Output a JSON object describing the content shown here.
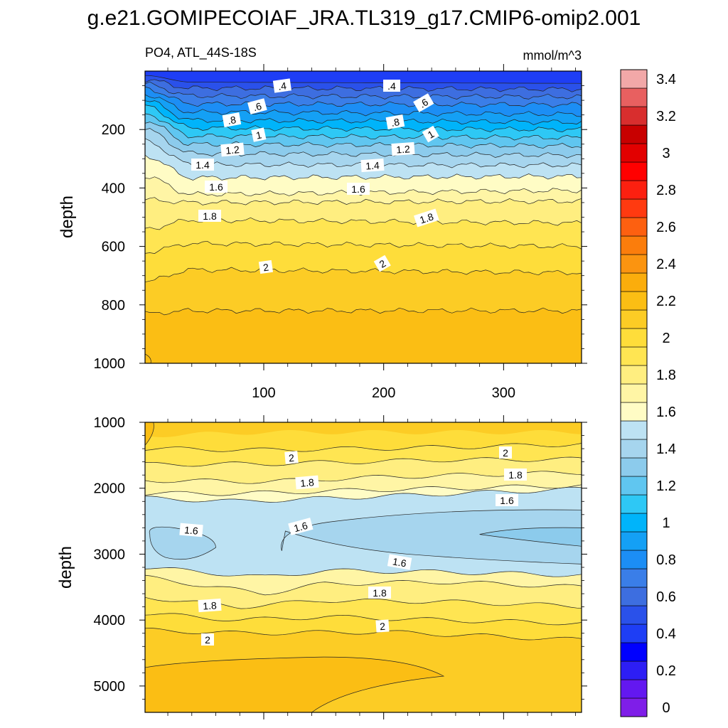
{
  "title": "g.e21.GOMIPECOIAF_JRA.TL319_g17.CMIP6-omip2.001",
  "chart_data": [
    {
      "type": "contour",
      "panel": "upper",
      "left_string": "PO4, ATL_44S-18S",
      "right_string": "mmol/m^3",
      "ylabel": "depth",
      "xlabel": "",
      "xlim": [
        1,
        365
      ],
      "ylim": [
        1000,
        0
      ],
      "x_ticks": [
        100,
        200,
        300
      ],
      "y_ticks": [
        200,
        400,
        600,
        800,
        1000
      ],
      "contour_levels": [
        {
          "value": 0.4,
          "depth_profile": [
            [
              1,
              15
            ],
            [
              40,
              38
            ],
            [
              365,
              42
            ]
          ]
        },
        {
          "value": 0.5,
          "depth_profile": [
            [
              1,
              30
            ],
            [
              40,
              58
            ],
            [
              365,
              62
            ]
          ]
        },
        {
          "value": 0.6,
          "depth_profile": [
            [
              1,
              45
            ],
            [
              40,
              85
            ],
            [
              365,
              88
            ]
          ]
        },
        {
          "value": 0.7,
          "depth_profile": [
            [
              1,
              60
            ],
            [
              40,
              112
            ],
            [
              365,
              115
            ]
          ]
        },
        {
          "value": 0.8,
          "depth_profile": [
            [
              1,
              80
            ],
            [
              40,
              140
            ],
            [
              365,
              148
            ]
          ]
        },
        {
          "value": 0.9,
          "depth_profile": [
            [
              1,
              100
            ],
            [
              40,
              168
            ],
            [
              365,
              175
            ]
          ]
        },
        {
          "value": 1.0,
          "depth_profile": [
            [
              1,
              120
            ],
            [
              40,
              195
            ],
            [
              365,
              200
            ]
          ]
        },
        {
          "value": 1.1,
          "depth_profile": [
            [
              1,
              145
            ],
            [
              40,
              222
            ],
            [
              365,
              228
            ]
          ]
        },
        {
          "value": 1.2,
          "depth_profile": [
            [
              1,
              170
            ],
            [
              40,
              250
            ],
            [
              365,
              256
            ]
          ]
        },
        {
          "value": 1.3,
          "depth_profile": [
            [
              1,
              200
            ],
            [
              40,
              282
            ],
            [
              365,
              288
            ]
          ]
        },
        {
          "value": 1.4,
          "depth_profile": [
            [
              1,
              240
            ],
            [
              40,
              320
            ],
            [
              365,
              322
            ]
          ]
        },
        {
          "value": 1.5,
          "depth_profile": [
            [
              1,
              290
            ],
            [
              40,
              365
            ],
            [
              365,
              360
            ]
          ]
        },
        {
          "value": 1.6,
          "depth_profile": [
            [
              1,
              360
            ],
            [
              40,
              422
            ],
            [
              365,
              408
            ]
          ]
        },
        {
          "value": 1.7,
          "depth_profile": [
            [
              1,
              440
            ],
            [
              40,
              450
            ],
            [
              365,
              445
            ]
          ]
        },
        {
          "value": 1.8,
          "depth_profile": [
            [
              1,
              540
            ],
            [
              40,
              510
            ],
            [
              365,
              520
            ]
          ]
        },
        {
          "value": 1.9,
          "depth_profile": [
            [
              1,
              620
            ],
            [
              40,
              590
            ],
            [
              365,
              600
            ]
          ]
        },
        {
          "value": 2.0,
          "depth_profile": [
            [
              1,
              720
            ],
            [
              40,
              680
            ],
            [
              365,
              690
            ]
          ]
        },
        {
          "value": 2.1,
          "depth_profile": [
            [
              1,
              830
            ],
            [
              40,
              820
            ],
            [
              365,
              820
            ]
          ]
        }
      ],
      "contour_labels": [
        "0.4",
        "0.6",
        "0.8",
        "1",
        "1.2",
        "1.4",
        "1.6",
        "1.8",
        "2"
      ]
    },
    {
      "type": "contour",
      "panel": "lower",
      "ylabel": "depth",
      "xlabel": "",
      "xlim": [
        1,
        365
      ],
      "ylim": [
        5400,
        1000
      ],
      "y_ticks": [
        1000,
        2000,
        3000,
        4000,
        5000
      ],
      "contour_levels": [
        {
          "value": 2.1,
          "depth_profile": [
            [
              1,
              1100
            ],
            [
              365,
              1150
            ]
          ]
        },
        {
          "value": 2.0,
          "depth_profile": [
            [
              1,
              1450
            ],
            [
              200,
              1420
            ],
            [
              365,
              1330
            ]
          ]
        },
        {
          "value": 1.9,
          "depth_profile": [
            [
              1,
              1650
            ],
            [
              200,
              1620
            ],
            [
              365,
              1560
            ]
          ]
        },
        {
          "value": 1.8,
          "depth_profile": [
            [
              1,
              1900
            ],
            [
              200,
              1850
            ],
            [
              365,
              1760
            ]
          ]
        },
        {
          "value": 1.7,
          "depth_profile": [
            [
              1,
              2100
            ],
            [
              200,
              2050
            ],
            [
              365,
              1950
            ]
          ]
        },
        {
          "value": 1.6,
          "depth_profile": [
            [
              1,
              2150
            ],
            [
              200,
              2120
            ],
            [
              365,
              2000
            ]
          ]
        },
        {
          "value": 1.7,
          "depth_profile": [
            [
              1,
              3200
            ],
            [
              200,
              3250
            ],
            [
              365,
              3300
            ]
          ]
        },
        {
          "value": 1.8,
          "depth_profile": [
            [
              1,
              3450
            ],
            [
              200,
              3450
            ],
            [
              365,
              3500
            ]
          ]
        },
        {
          "value": 1.9,
          "depth_profile": [
            [
              1,
              3750
            ],
            [
              200,
              3750
            ],
            [
              365,
              3800
            ]
          ]
        },
        {
          "value": 2.0,
          "depth_profile": [
            [
              1,
              4050
            ],
            [
              200,
              4050
            ],
            [
              365,
              4100
            ]
          ]
        },
        {
          "value": 2.1,
          "depth_profile": [
            [
              1,
              4250
            ],
            [
              200,
              4250
            ],
            [
              365,
              4300
            ]
          ]
        }
      ],
      "contour_labels": [
        "2",
        "1.8",
        "1.6",
        "1.8",
        "2"
      ]
    }
  ],
  "colorbar": {
    "labels": [
      "0",
      "0.2",
      "0.4",
      "0.6",
      "0.8",
      "1",
      "1.2",
      "1.4",
      "1.6",
      "1.8",
      "2",
      "2.2",
      "2.4",
      "2.6",
      "2.8",
      "3",
      "3.2",
      "3.4"
    ],
    "colors_low_to_high": [
      "#7f1ee8",
      "#6318f0",
      "#2d1ef5",
      "#0000ff",
      "#1e3ef5",
      "#2a51ea",
      "#3d6ee0",
      "#3a7ee8",
      "#1c8ef5",
      "#14a0f5",
      "#00b4fa",
      "#2ec8f5",
      "#60c6f0",
      "#8ccbec",
      "#a6d5ee",
      "#bde2f3",
      "#fffcc5",
      "#fff5a5",
      "#ffee80",
      "#ffe552",
      "#fedd3a",
      "#fccc25",
      "#fbbe14",
      "#fbad0c",
      "#fb9410",
      "#fb7d0c",
      "#fd6010",
      "#ff3a10",
      "#fc2010",
      "#ff0000",
      "#e20000",
      "#c80000",
      "#d82e2e",
      "#e86060",
      "#f2a8a8"
    ]
  }
}
